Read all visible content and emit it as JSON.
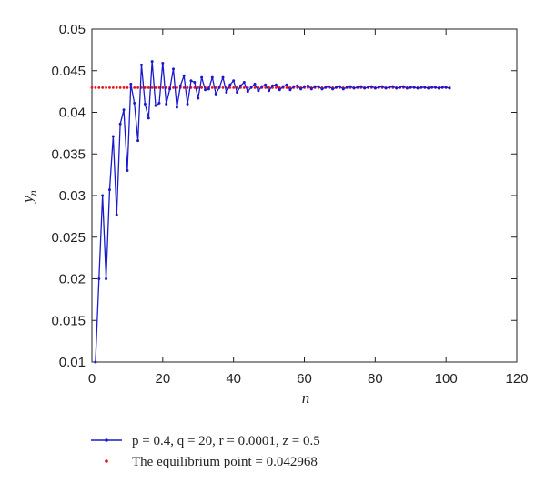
{
  "chart_data": {
    "type": "line",
    "xlabel": "n",
    "ylabel": "y",
    "ylabel_subscript": "n",
    "xlim": [
      0,
      120
    ],
    "ylim": [
      0.01,
      0.05
    ],
    "xticks": [
      0,
      20,
      40,
      60,
      80,
      100,
      120
    ],
    "yticks": [
      0.01,
      0.015,
      0.02,
      0.025,
      0.03,
      0.035,
      0.04,
      0.045,
      0.05
    ],
    "ytick_labels": [
      "0.01",
      "0.015",
      "0.02",
      "0.025",
      "0.03",
      "0.035",
      "0.04",
      "0.045",
      "0.05"
    ],
    "grid": false,
    "legend_position": "below",
    "series": [
      {
        "name": "p = 0.4, q = 20, r = 0.0001, z = 0.5",
        "color": "#1a1acc",
        "style": "line-with-dots",
        "x": [
          1,
          2,
          3,
          4,
          5,
          6,
          7,
          8,
          9,
          10,
          11,
          12,
          13,
          14,
          15,
          16,
          17,
          18,
          19,
          20,
          21,
          22,
          23,
          24,
          25,
          26,
          27,
          28,
          29,
          30,
          31,
          32,
          33,
          34,
          35,
          36,
          37,
          38,
          39,
          40,
          41,
          42,
          43,
          44,
          45,
          46,
          47,
          48,
          49,
          50,
          51,
          52,
          53,
          54,
          55,
          56,
          57,
          58,
          59,
          60,
          61,
          62,
          63,
          64,
          65,
          66,
          67,
          68,
          69,
          70,
          71,
          72,
          73,
          74,
          75,
          76,
          77,
          78,
          79,
          80,
          81,
          82,
          83,
          84,
          85,
          86,
          87,
          88,
          89,
          90,
          91,
          92,
          93,
          94,
          95,
          96,
          97,
          98,
          99,
          100,
          101
        ],
        "y": [
          0.01,
          0.02,
          0.03,
          0.02,
          0.0307,
          0.0371,
          0.0277,
          0.0386,
          0.0403,
          0.033,
          0.0434,
          0.0411,
          0.0366,
          0.0457,
          0.041,
          0.0393,
          0.0461,
          0.0408,
          0.0411,
          0.0459,
          0.041,
          0.0428,
          0.0452,
          0.0406,
          0.0432,
          0.0444,
          0.041,
          0.0438,
          0.0436,
          0.0417,
          0.0442,
          0.0427,
          0.0428,
          0.0442,
          0.0422,
          0.043,
          0.0442,
          0.0424,
          0.0433,
          0.0438,
          0.0424,
          0.0432,
          0.0436,
          0.0425,
          0.043,
          0.0434,
          0.0426,
          0.0431,
          0.0433,
          0.0426,
          0.0432,
          0.0433,
          0.0427,
          0.0431,
          0.0433,
          0.0427,
          0.0431,
          0.0432,
          0.0428,
          0.0431,
          0.0432,
          0.0428,
          0.0431,
          0.0431,
          0.0428,
          0.043,
          0.0431,
          0.0428,
          0.043,
          0.0431,
          0.0428,
          0.043,
          0.0431,
          0.0429,
          0.043,
          0.0431,
          0.0429,
          0.043,
          0.0431,
          0.0429,
          0.043,
          0.0431,
          0.0429,
          0.043,
          0.0431,
          0.0429,
          0.043,
          0.0431,
          0.0429,
          0.043,
          0.043,
          0.0429,
          0.043,
          0.043,
          0.0429,
          0.043,
          0.043,
          0.0429,
          0.043,
          0.043,
          0.0429
        ]
      },
      {
        "name": "The equilibrium point = 0.042968",
        "color": "#e8121a",
        "style": "dots",
        "x_start": 0,
        "x_end": 101,
        "value": 0.042968
      }
    ]
  }
}
